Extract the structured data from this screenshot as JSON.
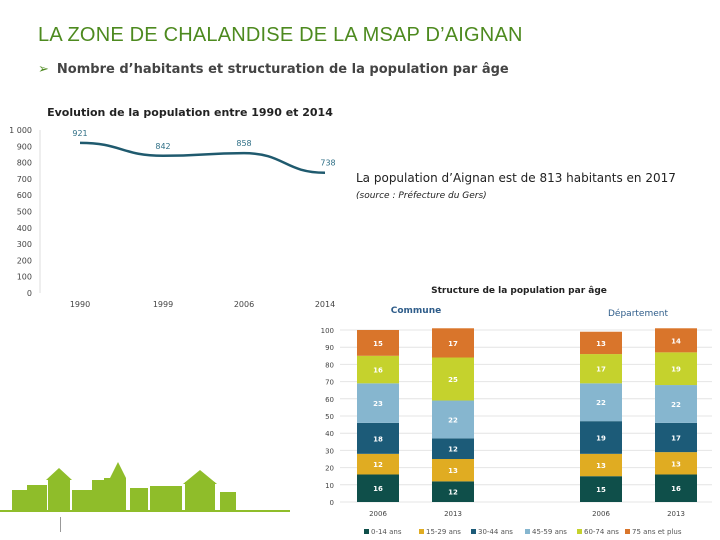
{
  "header": {
    "title": "LA ZONE DE CHALANDISE DE LA MSAP D’AIGNAN",
    "subtitle": "Nombre d’habitants et structuration de la population par âge",
    "bullet_icon": "arrow-bullet-icon"
  },
  "info": {
    "text": "La population d’Aignan est de 813 habitants en 2017",
    "source": "(source : Préfecture du Gers)"
  },
  "colors": {
    "title": "#4d8a1f",
    "line": "#1f5a6e"
  },
  "chart_data": [
    {
      "type": "line",
      "title": "Evolution de la population entre 1990 et 2014",
      "categories": [
        "1990",
        "1999",
        "2006",
        "2014"
      ],
      "values": [
        921,
        842,
        858,
        738
      ],
      "data_labels": [
        "921",
        "842",
        "858",
        "738"
      ],
      "ylim": [
        0,
        1000
      ],
      "yticks": [
        "0",
        "100",
        "200",
        "300",
        "400",
        "500",
        "600",
        "700",
        "800",
        "900",
        "1 000"
      ],
      "grid": false
    },
    {
      "type": "bar",
      "stacked": true,
      "title": "Structure de la population par âge",
      "groups": [
        "Commune",
        "Département"
      ],
      "categories": [
        "2006",
        "2013",
        "2006",
        "2013"
      ],
      "group_of_category": [
        0,
        0,
        1,
        1
      ],
      "ylim": [
        0,
        100
      ],
      "yticks": [
        "0",
        "10",
        "20",
        "30",
        "40",
        "50",
        "60",
        "70",
        "80",
        "90",
        "100"
      ],
      "grid": true,
      "legend_position": "bottom",
      "series": [
        {
          "name": "0-14 ans",
          "color": "#0f4f4a",
          "values": [
            16,
            12,
            15,
            16
          ]
        },
        {
          "name": "15-29 ans",
          "color": "#e0ac22",
          "values": [
            12,
            13,
            13,
            13
          ]
        },
        {
          "name": "30-44 ans",
          "color": "#1c5b78",
          "values": [
            18,
            12,
            19,
            17
          ]
        },
        {
          "name": "45-59 ans",
          "color": "#86b6cf",
          "values": [
            23,
            22,
            22,
            22
          ]
        },
        {
          "name": "60-74 ans",
          "color": "#c5d22d",
          "values": [
            16,
            25,
            17,
            19
          ]
        },
        {
          "name": "75 ans et plus",
          "color": "#d9752b",
          "values": [
            15,
            17,
            13,
            14
          ]
        }
      ]
    }
  ]
}
